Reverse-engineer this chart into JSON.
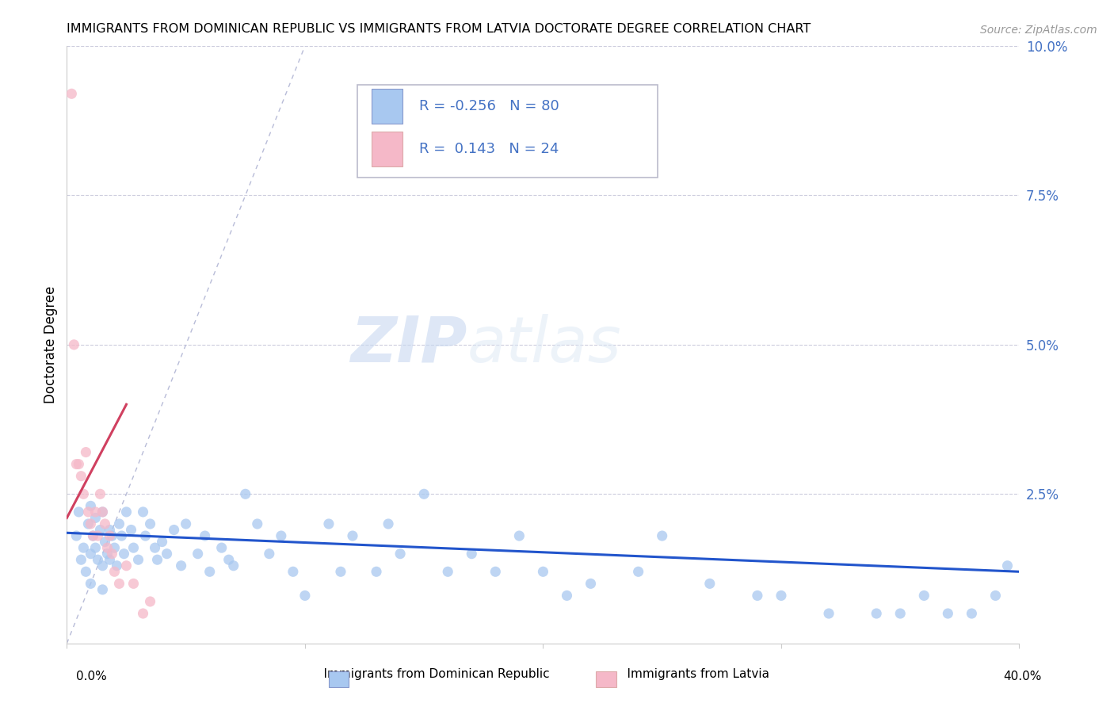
{
  "title": "IMMIGRANTS FROM DOMINICAN REPUBLIC VS IMMIGRANTS FROM LATVIA DOCTORATE DEGREE CORRELATION CHART",
  "source": "Source: ZipAtlas.com",
  "ylabel": "Doctorate Degree",
  "ytick_values": [
    0.0,
    0.025,
    0.05,
    0.075,
    0.1
  ],
  "ytick_labels": [
    "",
    "2.5%",
    "5.0%",
    "7.5%",
    "10.0%"
  ],
  "xlim": [
    0.0,
    0.4
  ],
  "ylim": [
    0.0,
    0.1
  ],
  "legend_r_blue": "-0.256",
  "legend_n_blue": "80",
  "legend_r_pink": "0.143",
  "legend_n_pink": "24",
  "blue_color": "#a8c8f0",
  "pink_color": "#f5b8c8",
  "blue_line_color": "#2255cc",
  "pink_line_color": "#d04060",
  "diag_line_color": "#b8bcd8",
  "watermark_zip": "ZIP",
  "watermark_atlas": "atlas",
  "right_axis_color": "#4472c4",
  "blue_scatter_x": [
    0.004,
    0.005,
    0.006,
    0.007,
    0.008,
    0.009,
    0.01,
    0.01,
    0.011,
    0.012,
    0.012,
    0.013,
    0.014,
    0.015,
    0.015,
    0.016,
    0.017,
    0.018,
    0.018,
    0.019,
    0.02,
    0.021,
    0.022,
    0.023,
    0.024,
    0.025,
    0.027,
    0.028,
    0.03,
    0.032,
    0.033,
    0.035,
    0.037,
    0.038,
    0.04,
    0.042,
    0.045,
    0.048,
    0.05,
    0.055,
    0.058,
    0.06,
    0.065,
    0.068,
    0.07,
    0.075,
    0.08,
    0.085,
    0.09,
    0.095,
    0.1,
    0.11,
    0.115,
    0.12,
    0.13,
    0.135,
    0.14,
    0.15,
    0.16,
    0.17,
    0.18,
    0.19,
    0.2,
    0.21,
    0.22,
    0.24,
    0.25,
    0.27,
    0.29,
    0.3,
    0.32,
    0.34,
    0.35,
    0.36,
    0.37,
    0.38,
    0.39,
    0.395,
    0.01,
    0.015
  ],
  "blue_scatter_y": [
    0.018,
    0.022,
    0.014,
    0.016,
    0.012,
    0.02,
    0.015,
    0.023,
    0.018,
    0.016,
    0.021,
    0.014,
    0.019,
    0.013,
    0.022,
    0.017,
    0.015,
    0.019,
    0.014,
    0.018,
    0.016,
    0.013,
    0.02,
    0.018,
    0.015,
    0.022,
    0.019,
    0.016,
    0.014,
    0.022,
    0.018,
    0.02,
    0.016,
    0.014,
    0.017,
    0.015,
    0.019,
    0.013,
    0.02,
    0.015,
    0.018,
    0.012,
    0.016,
    0.014,
    0.013,
    0.025,
    0.02,
    0.015,
    0.018,
    0.012,
    0.008,
    0.02,
    0.012,
    0.018,
    0.012,
    0.02,
    0.015,
    0.025,
    0.012,
    0.015,
    0.012,
    0.018,
    0.012,
    0.008,
    0.01,
    0.012,
    0.018,
    0.01,
    0.008,
    0.008,
    0.005,
    0.005,
    0.005,
    0.008,
    0.005,
    0.005,
    0.008,
    0.013,
    0.01,
    0.009
  ],
  "pink_scatter_x": [
    0.002,
    0.003,
    0.004,
    0.005,
    0.006,
    0.007,
    0.008,
    0.009,
    0.01,
    0.011,
    0.012,
    0.013,
    0.014,
    0.015,
    0.016,
    0.017,
    0.018,
    0.019,
    0.02,
    0.022,
    0.025,
    0.028,
    0.032,
    0.035
  ],
  "pink_scatter_y": [
    0.092,
    0.05,
    0.03,
    0.03,
    0.028,
    0.025,
    0.032,
    0.022,
    0.02,
    0.018,
    0.022,
    0.018,
    0.025,
    0.022,
    0.02,
    0.016,
    0.018,
    0.015,
    0.012,
    0.01,
    0.013,
    0.01,
    0.005,
    0.007
  ],
  "blue_trend_x": [
    0.0,
    0.4
  ],
  "blue_trend_y": [
    0.0185,
    0.012
  ],
  "pink_trend_x": [
    0.0,
    0.025
  ],
  "pink_trend_y": [
    0.021,
    0.04
  ]
}
